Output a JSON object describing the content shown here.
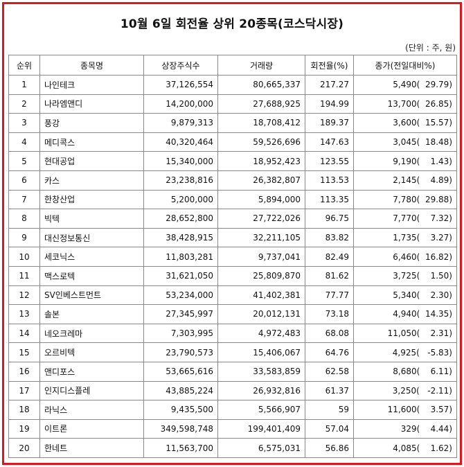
{
  "title": "10월 6일 회전율 상위 20종목(코스닥시장)",
  "unit_note": "(단위 : 주, 원)",
  "colors": {
    "frame_border": "#e0161c",
    "grid_line": "#888888"
  },
  "table": {
    "headers": [
      "순위",
      "종목명",
      "상장주식수",
      "거래량",
      "회전율(%)",
      "종가(전일대비%)"
    ],
    "rows": [
      {
        "rank": "1",
        "name": "나인테크",
        "shares": "37,126,554",
        "volume": "80,665,337",
        "turnover": "217.27",
        "close": "5,490(  29.79)"
      },
      {
        "rank": "2",
        "name": "나라엠앤디",
        "shares": "14,200,000",
        "volume": "27,688,925",
        "turnover": "194.99",
        "close": "13,700(  26.85)"
      },
      {
        "rank": "3",
        "name": "풍강",
        "shares": "9,879,313",
        "volume": "18,708,412",
        "turnover": "189.37",
        "close": "3,600(  15.57)"
      },
      {
        "rank": "4",
        "name": "메디콕스",
        "shares": "40,320,464",
        "volume": "59,526,696",
        "turnover": "147.63",
        "close": "3,045(  18.48)"
      },
      {
        "rank": "5",
        "name": "현대공업",
        "shares": "15,340,000",
        "volume": "18,952,423",
        "turnover": "123.55",
        "close": "9,190(    1.43)"
      },
      {
        "rank": "6",
        "name": "카스",
        "shares": "23,238,816",
        "volume": "26,382,807",
        "turnover": "113.53",
        "close": "2,145(    4.89)"
      },
      {
        "rank": "7",
        "name": "한창산업",
        "shares": "5,200,000",
        "volume": "5,894,000",
        "turnover": "113.35",
        "close": "7,780(  29.88)"
      },
      {
        "rank": "8",
        "name": "빅텍",
        "shares": "28,652,800",
        "volume": "27,722,026",
        "turnover": "96.75",
        "close": "7,770(    7.32)"
      },
      {
        "rank": "9",
        "name": "대신정보통신",
        "shares": "38,428,915",
        "volume": "32,211,105",
        "turnover": "83.82",
        "close": "1,735(    3.27)"
      },
      {
        "rank": "10",
        "name": "세코닉스",
        "shares": "11,803,281",
        "volume": "9,737,041",
        "turnover": "82.49",
        "close": "6,460(  16.82)"
      },
      {
        "rank": "11",
        "name": "맥스로텍",
        "shares": "31,621,050",
        "volume": "25,809,870",
        "turnover": "81.62",
        "close": "3,725(    1.50)"
      },
      {
        "rank": "12",
        "name": "SV인베스트먼트",
        "shares": "53,234,000",
        "volume": "41,402,381",
        "turnover": "77.77",
        "close": "5,340(    2.30)"
      },
      {
        "rank": "13",
        "name": "솔본",
        "shares": "27,345,997",
        "volume": "20,012,131",
        "turnover": "73.18",
        "close": "4,940(  14.35)"
      },
      {
        "rank": "14",
        "name": "네오크레마",
        "shares": "7,303,995",
        "volume": "4,972,483",
        "turnover": "68.08",
        "close": "11,050(    2.31)"
      },
      {
        "rank": "15",
        "name": "오르비텍",
        "shares": "23,790,573",
        "volume": "15,406,067",
        "turnover": "64.76",
        "close": "4,925(   -5.83)"
      },
      {
        "rank": "16",
        "name": "앤디포스",
        "shares": "53,665,616",
        "volume": "33,583,859",
        "turnover": "62.58",
        "close": "8,680(    6.11)"
      },
      {
        "rank": "17",
        "name": "인지디스플레",
        "shares": "43,885,224",
        "volume": "26,932,816",
        "turnover": "61.37",
        "close": "3,250(   -2.11)"
      },
      {
        "rank": "18",
        "name": "라닉스",
        "shares": "9,435,500",
        "volume": "5,566,907",
        "turnover": "59",
        "close": "11,600(    3.57)"
      },
      {
        "rank": "19",
        "name": "이트론",
        "shares": "349,598,748",
        "volume": "199,401,409",
        "turnover": "57.04",
        "close": "329(    4.44)"
      },
      {
        "rank": "20",
        "name": "한네트",
        "shares": "11,563,700",
        "volume": "6,575,031",
        "turnover": "56.86",
        "close": "4,085(    1.62)"
      }
    ]
  }
}
